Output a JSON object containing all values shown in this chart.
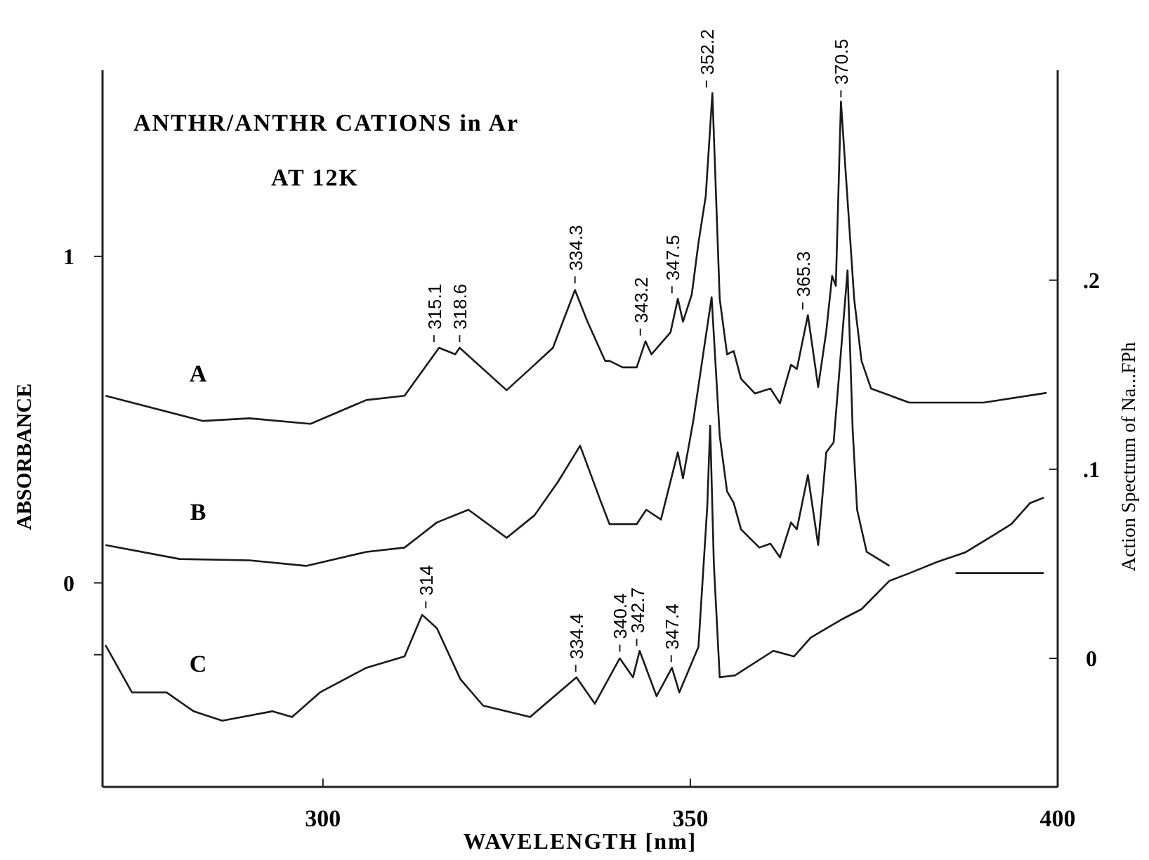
{
  "chart_data": {
    "type": "line",
    "title": "ANTHR/ANTHR CATIONS in Ar",
    "subtitle": "AT 12K",
    "xlabel": "WAVELENGTH [nm]",
    "ylabel": "ABSORBANCE",
    "y2label": "Action Spectrum of Na...FPh",
    "xlim": [
      270,
      400
    ],
    "xticks": [
      300,
      350,
      400
    ],
    "ylim": [
      -0.625,
      1.57
    ],
    "yticks": [
      {
        "value": -0.22,
        "label": null
      },
      0,
      1
    ],
    "y2lim": [
      -0.068,
      0.311
    ],
    "y2ticks": [
      0,
      {
        "value": 0.1,
        "label": ".1"
      },
      {
        "value": 0.2,
        "label": ".2"
      }
    ],
    "series": [
      {
        "name": "A",
        "color": "#1a1a1a",
        "x": [
          270.4,
          283.6,
          290,
          298.3,
          305.9,
          311.1,
          315.8,
          318,
          318.6,
          325,
          328.8,
          331.3,
          334.3,
          336,
          338.4,
          339,
          340.8,
          342.7,
          343.9,
          344.7,
          347.3,
          348.3,
          349,
          350.2,
          351.1,
          352.1,
          353,
          354,
          355,
          355.9,
          356.9,
          358.8,
          360.9,
          362.2,
          363.7,
          364.5,
          366,
          367.4,
          368.5,
          369.3,
          369.8,
          370.5,
          372.3,
          373.3,
          374.6,
          379.8,
          389.9,
          398.5
        ],
        "values": [
          0.573,
          0.496,
          0.504,
          0.487,
          0.56,
          0.573,
          0.72,
          0.7,
          0.72,
          0.59,
          0.668,
          0.72,
          0.897,
          0.8,
          0.68,
          0.68,
          0.66,
          0.66,
          0.74,
          0.7,
          0.767,
          0.87,
          0.8,
          0.884,
          1.04,
          1.185,
          1.5,
          0.87,
          0.7,
          0.71,
          0.625,
          0.58,
          0.595,
          0.55,
          0.668,
          0.655,
          0.82,
          0.6,
          0.77,
          0.94,
          0.91,
          1.474,
          0.87,
          0.68,
          0.595,
          0.552,
          0.552,
          0.582
        ]
      },
      {
        "name": "B",
        "color": "#1a1a1a",
        "x": [
          270.4,
          280.5,
          290,
          297.7,
          305.9,
          311.1,
          315.5,
          319.8,
          325,
          328.8,
          332,
          335,
          337.8,
          339,
          342.7,
          344,
          346,
          348.3,
          349,
          350.4,
          352.9,
          354,
          355,
          355.9,
          356.9,
          359.4,
          360.9,
          362.2,
          363.7,
          364.5,
          366,
          367.4,
          368.5,
          369.5,
          371.4,
          372.1,
          372.7,
          374,
          377.1,
          381,
          386.1,
          398.1
        ],
        "values": [
          0.116,
          0.073,
          0.069,
          0.052,
          0.095,
          0.108,
          0.185,
          0.224,
          0.138,
          0.207,
          0.31,
          0.42,
          0.25,
          0.18,
          0.18,
          0.224,
          0.194,
          0.4,
          0.32,
          0.496,
          0.875,
          0.45,
          0.28,
          0.245,
          0.164,
          0.108,
          0.12,
          0.078,
          0.185,
          0.164,
          0.33,
          0.116,
          0.4,
          0.43,
          0.957,
          0.466,
          0.224,
          0.095,
          0.052,
          null,
          0.03,
          0.03
        ]
      },
      {
        "name": "C",
        "color": "#1a1a1a",
        "axis": "y2",
        "x": [
          270.4,
          274,
          278.7,
          282.4,
          286.3,
          293.1,
          295.8,
          299.6,
          305.9,
          311.1,
          313.5,
          315.5,
          318.7,
          321.8,
          328.2,
          334.5,
          337,
          340.4,
          342.2,
          343.1,
          345.4,
          347.5,
          348.5,
          351.1,
          352.3,
          352.7,
          353.2,
          354,
          356.1,
          361.3,
          364.1,
          366.4,
          370.8,
          373.3,
          377.1,
          379.8,
          383.6,
          387.4,
          391.2,
          393.7,
          396.2,
          398.1
        ],
        "values": [
          0.007,
          -0.018,
          -0.018,
          -0.028,
          -0.033,
          -0.028,
          -0.031,
          -0.018,
          -0.005,
          0.001,
          0.023,
          0.016,
          -0.011,
          -0.025,
          -0.031,
          -0.01,
          -0.024,
          0,
          -0.01,
          0.004,
          -0.02,
          -0.005,
          -0.018,
          0.006,
          0.08,
          0.123,
          0.05,
          -0.01,
          -0.009,
          0.004,
          0.001,
          0.011,
          0.021,
          0.026,
          0.041,
          0.045,
          0.051,
          0.056,
          0.065,
          0.071,
          0.082,
          0.085
        ]
      }
    ],
    "annotations": [
      {
        "text": "315.1",
        "x": 315.1,
        "y": 0.72
      },
      {
        "text": "318.6",
        "x": 318.6,
        "y": 0.72
      },
      {
        "text": "334.3",
        "x": 334.3,
        "y": 0.9
      },
      {
        "text": "343.2",
        "x": 343.2,
        "y": 0.74
      },
      {
        "text": "347.5",
        "x": 347.5,
        "y": 0.87
      },
      {
        "text": "352.2",
        "x": 352.2,
        "y": 1.5
      },
      {
        "text": "365.3",
        "x": 365.3,
        "y": 0.82
      },
      {
        "text": "370.5",
        "x": 370.5,
        "y": 1.47
      },
      {
        "text": "314",
        "x": 314,
        "y": -0.095
      },
      {
        "text": "334.4",
        "x": 334.4,
        "y": -0.29
      },
      {
        "text": "340.4",
        "x": 340.4,
        "y": -0.228
      },
      {
        "text": "342.7",
        "x": 342.7,
        "y": -0.21
      },
      {
        "text": "347.4",
        "x": 347.4,
        "y": -0.26
      }
    ]
  }
}
